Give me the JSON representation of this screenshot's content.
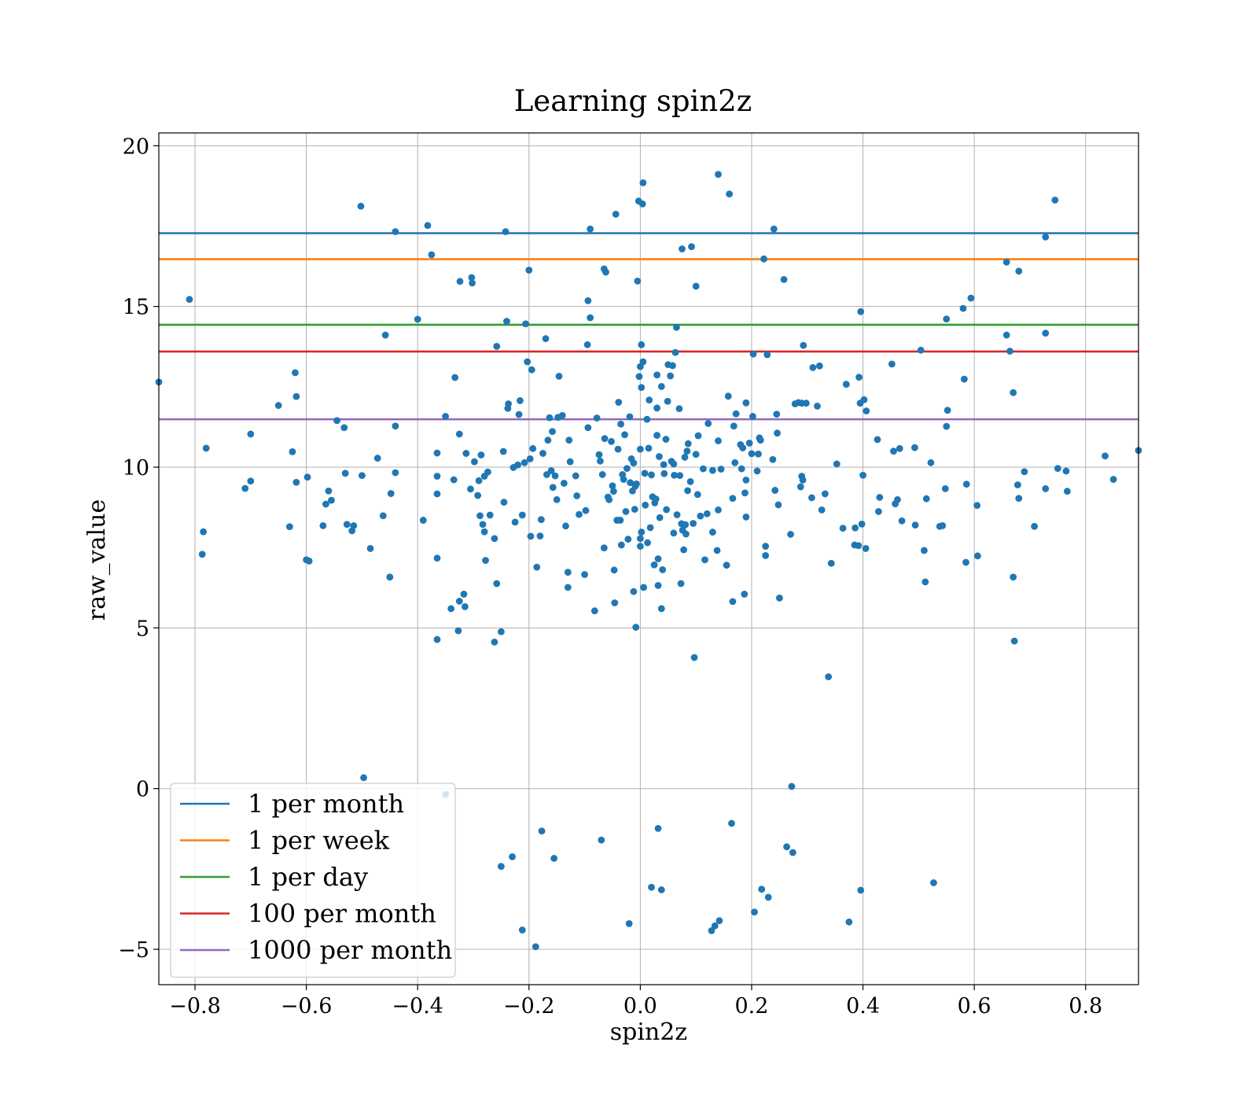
{
  "chart_data": {
    "type": "scatter",
    "title": "Learning spin2z",
    "xlabel": "spin2z",
    "ylabel": "raw_value",
    "xlim": [
      -0.865,
      0.895
    ],
    "ylim": [
      -6.1,
      20.4
    ],
    "xticks": [
      -0.8,
      -0.6,
      -0.4,
      -0.2,
      0.0,
      0.2,
      0.4,
      0.6,
      0.8
    ],
    "xtick_labels": [
      "−0.8",
      "−0.6",
      "−0.4",
      "−0.2",
      "0.0",
      "0.2",
      "0.4",
      "0.6",
      "0.8"
    ],
    "yticks": [
      -5,
      0,
      5,
      10,
      15,
      20
    ],
    "ytick_labels": [
      "−5",
      "0",
      "5",
      "10",
      "15",
      "20"
    ],
    "grid": true,
    "legend_position": "lower-left",
    "marker_color": "#1f77b4",
    "thresholds": [
      {
        "name": "1 per month",
        "y": 17.28,
        "color": "#1f77b4"
      },
      {
        "name": "1 per week",
        "y": 16.47,
        "color": "#ff7f0e"
      },
      {
        "name": "1 per day",
        "y": 14.43,
        "color": "#2ca02c"
      },
      {
        "name": "100 per month",
        "y": 13.6,
        "color": "#d62728"
      },
      {
        "name": "1000 per month",
        "y": 11.49,
        "color": "#9467bd"
      }
    ],
    "points": [
      [
        -0.865,
        12.65
      ],
      [
        -0.81,
        15.22
      ],
      [
        -0.78,
        10.59
      ],
      [
        -0.785,
        7.99
      ],
      [
        -0.787,
        7.29
      ],
      [
        -0.71,
        9.34
      ],
      [
        -0.7,
        11.03
      ],
      [
        -0.7,
        9.57
      ],
      [
        -0.65,
        11.92
      ],
      [
        -0.63,
        8.15
      ],
      [
        -0.625,
        10.48
      ],
      [
        -0.62,
        12.94
      ],
      [
        -0.618,
        12.2
      ],
      [
        -0.618,
        9.53
      ],
      [
        -0.6,
        7.12
      ],
      [
        -0.598,
        9.69
      ],
      [
        -0.595,
        7.08
      ],
      [
        -0.57,
        8.18
      ],
      [
        -0.565,
        8.85
      ],
      [
        -0.56,
        9.26
      ],
      [
        -0.555,
        8.97
      ],
      [
        -0.545,
        11.45
      ],
      [
        -0.532,
        11.23
      ],
      [
        -0.53,
        9.81
      ],
      [
        -0.527,
        8.22
      ],
      [
        -0.518,
        8.02
      ],
      [
        -0.515,
        8.18
      ],
      [
        -0.5,
        9.74
      ],
      [
        -0.502,
        18.12
      ],
      [
        -0.497,
        0.34
      ],
      [
        -0.485,
        7.47
      ],
      [
        -0.472,
        10.28
      ],
      [
        -0.462,
        8.49
      ],
      [
        -0.458,
        14.11
      ],
      [
        -0.448,
        9.18
      ],
      [
        -0.45,
        6.58
      ],
      [
        -0.44,
        9.83
      ],
      [
        -0.44,
        11.28
      ],
      [
        -0.44,
        17.33
      ],
      [
        -0.4,
        14.6
      ],
      [
        -0.39,
        8.35
      ],
      [
        -0.382,
        17.52
      ],
      [
        -0.375,
        16.61
      ],
      [
        -0.365,
        10.44
      ],
      [
        -0.365,
        9.72
      ],
      [
        -0.365,
        9.17
      ],
      [
        -0.365,
        7.17
      ],
      [
        -0.365,
        4.64
      ],
      [
        -0.35,
        -0.18
      ],
      [
        -0.35,
        11.58
      ],
      [
        -0.34,
        5.6
      ],
      [
        -0.335,
        9.61
      ],
      [
        -0.333,
        12.79
      ],
      [
        -0.327,
        4.91
      ],
      [
        -0.325,
        11.03
      ],
      [
        -0.324,
        15.78
      ],
      [
        -0.325,
        5.83
      ],
      [
        -0.317,
        6.05
      ],
      [
        -0.315,
        5.66
      ],
      [
        -0.313,
        10.43
      ],
      [
        -0.305,
        9.32
      ],
      [
        -0.303,
        15.9
      ],
      [
        -0.302,
        15.73
      ],
      [
        -0.298,
        10.17
      ],
      [
        -0.292,
        9.12
      ],
      [
        -0.29,
        9.58
      ],
      [
        -0.288,
        8.49
      ],
      [
        -0.286,
        10.38
      ],
      [
        -0.283,
        8.22
      ],
      [
        -0.28,
        9.72
      ],
      [
        -0.28,
        7.99
      ],
      [
        -0.278,
        7.1
      ],
      [
        -0.274,
        9.85
      ],
      [
        -0.27,
        8.51
      ],
      [
        -0.262,
        7.78
      ],
      [
        -0.262,
        4.56
      ],
      [
        -0.258,
        13.76
      ],
      [
        -0.258,
        6.38
      ],
      [
        -0.25,
        4.88
      ],
      [
        -0.25,
        -2.42
      ],
      [
        -0.246,
        10.49
      ],
      [
        -0.245,
        8.91
      ],
      [
        -0.242,
        17.33
      ],
      [
        -0.24,
        14.54
      ],
      [
        -0.238,
        11.83
      ],
      [
        -0.237,
        11.97
      ],
      [
        -0.23,
        -2.12
      ],
      [
        -0.228,
        9.99
      ],
      [
        -0.225,
        8.29
      ],
      [
        -0.22,
        10.07
      ],
      [
        -0.218,
        11.64
      ],
      [
        -0.216,
        12.07
      ],
      [
        -0.212,
        8.51
      ],
      [
        -0.212,
        -4.4
      ],
      [
        -0.208,
        10.14
      ],
      [
        -0.206,
        14.46
      ],
      [
        -0.203,
        13.28
      ],
      [
        -0.2,
        16.13
      ],
      [
        -0.198,
        10.26
      ],
      [
        -0.197,
        7.85
      ],
      [
        -0.195,
        13.03
      ],
      [
        -0.193,
        10.58
      ],
      [
        -0.188,
        -4.92
      ],
      [
        -0.186,
        6.89
      ],
      [
        -0.18,
        7.86
      ],
      [
        -0.177,
        -1.32
      ],
      [
        -0.178,
        8.37
      ],
      [
        -0.175,
        10.43
      ],
      [
        -0.17,
        14.0
      ],
      [
        -0.168,
        9.77
      ],
      [
        -0.166,
        10.84
      ],
      [
        -0.163,
        11.54
      ],
      [
        -0.16,
        9.89
      ],
      [
        -0.158,
        11.11
      ],
      [
        -0.157,
        9.37
      ],
      [
        -0.155,
        -2.17
      ],
      [
        -0.153,
        9.73
      ],
      [
        -0.15,
        8.99
      ],
      [
        -0.148,
        11.55
      ],
      [
        -0.146,
        12.83
      ],
      [
        -0.14,
        11.61
      ],
      [
        -0.137,
        9.5
      ],
      [
        -0.134,
        8.17
      ],
      [
        -0.13,
        6.26
      ],
      [
        -0.13,
        6.73
      ],
      [
        -0.128,
        10.84
      ],
      [
        -0.126,
        10.17
      ],
      [
        -0.116,
        9.73
      ],
      [
        -0.114,
        9.11
      ],
      [
        -0.11,
        8.53
      ],
      [
        -0.1,
        6.66
      ],
      [
        -0.098,
        8.65
      ],
      [
        -0.095,
        13.81
      ],
      [
        -0.094,
        11.23
      ],
      [
        -0.094,
        15.18
      ],
      [
        -0.09,
        14.65
      ],
      [
        -0.09,
        17.41
      ],
      [
        -0.082,
        5.53
      ],
      [
        -0.078,
        11.53
      ],
      [
        -0.074,
        10.39
      ],
      [
        -0.072,
        10.19
      ],
      [
        -0.07,
        -1.6
      ],
      [
        -0.068,
        9.77
      ],
      [
        -0.065,
        16.17
      ],
      [
        -0.062,
        16.07
      ],
      [
        -0.065,
        7.49
      ],
      [
        -0.064,
        10.89
      ],
      [
        -0.058,
        9.07
      ],
      [
        -0.056,
        8.99
      ],
      [
        -0.052,
        10.8
      ],
      [
        -0.05,
        9.42
      ],
      [
        -0.048,
        9.25
      ],
      [
        -0.047,
        6.8
      ],
      [
        -0.046,
        5.78
      ],
      [
        -0.044,
        17.87
      ],
      [
        -0.042,
        8.35
      ],
      [
        -0.04,
        10.56
      ],
      [
        -0.039,
        12.02
      ],
      [
        -0.036,
        8.35
      ],
      [
        -0.035,
        11.34
      ],
      [
        -0.034,
        7.58
      ],
      [
        -0.032,
        9.77
      ],
      [
        -0.03,
        9.62
      ],
      [
        -0.028,
        11.01
      ],
      [
        -0.026,
        8.62
      ],
      [
        -0.022,
        7.76
      ],
      [
        -0.024,
        9.96
      ],
      [
        -0.02,
        -4.2
      ],
      [
        -0.019,
        11.57
      ],
      [
        -0.018,
        9.52
      ],
      [
        -0.016,
        10.26
      ],
      [
        -0.014,
        9.26
      ],
      [
        -0.012,
        10.13
      ],
      [
        -0.012,
        6.13
      ],
      [
        -0.01,
        8.69
      ],
      [
        -0.008,
        5.02
      ],
      [
        -0.009,
        9.41
      ],
      [
        -0.007,
        9.48
      ],
      [
        -0.005,
        15.79
      ],
      [
        -0.003,
        18.28
      ],
      [
        -0.002,
        12.82
      ],
      [
        0.0,
        10.56
      ],
      [
        0.0,
        13.13
      ],
      [
        0.0,
        7.54
      ],
      [
        0.0,
        7.78
      ],
      [
        0.002,
        7.98
      ],
      [
        0.002,
        12.48
      ],
      [
        0.002,
        13.81
      ],
      [
        0.004,
        18.19
      ],
      [
        0.005,
        18.85
      ],
      [
        0.005,
        13.28
      ],
      [
        0.006,
        6.26
      ],
      [
        0.008,
        9.81
      ],
      [
        0.009,
        8.82
      ],
      [
        0.012,
        11.49
      ],
      [
        0.013,
        7.65
      ],
      [
        0.015,
        10.59
      ],
      [
        0.016,
        12.09
      ],
      [
        0.018,
        8.12
      ],
      [
        0.02,
        9.76
      ],
      [
        0.022,
        9.08
      ],
      [
        0.02,
        -3.07
      ],
      [
        0.025,
        6.96
      ],
      [
        0.026,
        8.89
      ],
      [
        0.028,
        9.01
      ],
      [
        0.03,
        10.99
      ],
      [
        0.03,
        12.87
      ],
      [
        0.03,
        11.84
      ],
      [
        0.032,
        7.15
      ],
      [
        0.032,
        6.32
      ],
      [
        0.032,
        -1.24
      ],
      [
        0.034,
        10.33
      ],
      [
        0.035,
        8.43
      ],
      [
        0.038,
        12.51
      ],
      [
        0.038,
        5.6
      ],
      [
        0.038,
        -3.15
      ],
      [
        0.04,
        6.81
      ],
      [
        0.042,
        10.08
      ],
      [
        0.043,
        9.8
      ],
      [
        0.046,
        10.87
      ],
      [
        0.047,
        8.68
      ],
      [
        0.049,
        12.05
      ],
      [
        0.05,
        13.19
      ],
      [
        0.054,
        12.84
      ],
      [
        0.056,
        10.18
      ],
      [
        0.058,
        13.16
      ],
      [
        0.06,
        7.95
      ],
      [
        0.06,
        10.1
      ],
      [
        0.061,
        9.75
      ],
      [
        0.063,
        13.57
      ],
      [
        0.065,
        14.35
      ],
      [
        0.066,
        8.52
      ],
      [
        0.07,
        11.82
      ],
      [
        0.071,
        9.74
      ],
      [
        0.073,
        6.38
      ],
      [
        0.074,
        8.24
      ],
      [
        0.075,
        16.79
      ],
      [
        0.076,
        8.04
      ],
      [
        0.078,
        7.43
      ],
      [
        0.08,
        10.31
      ],
      [
        0.081,
        8.21
      ],
      [
        0.082,
        7.92
      ],
      [
        0.084,
        10.5
      ],
      [
        0.085,
        9.27
      ],
      [
        0.086,
        10.73
      ],
      [
        0.09,
        9.55
      ],
      [
        0.092,
        16.86
      ],
      [
        0.095,
        8.25
      ],
      [
        0.097,
        4.08
      ],
      [
        0.1,
        10.4
      ],
      [
        0.1,
        15.63
      ],
      [
        0.103,
        9.15
      ],
      [
        0.104,
        10.98
      ],
      [
        0.108,
        8.48
      ],
      [
        0.113,
        9.95
      ],
      [
        0.116,
        7.12
      ],
      [
        0.12,
        8.55
      ],
      [
        0.122,
        11.36
      ],
      [
        0.128,
        -4.42
      ],
      [
        0.13,
        7.98
      ],
      [
        0.13,
        9.9
      ],
      [
        0.134,
        -4.27
      ],
      [
        0.138,
        7.41
      ],
      [
        0.14,
        10.82
      ],
      [
        0.14,
        8.67
      ],
      [
        0.14,
        19.11
      ],
      [
        0.142,
        -4.11
      ],
      [
        0.145,
        9.94
      ],
      [
        0.155,
        6.95
      ],
      [
        0.158,
        12.21
      ],
      [
        0.16,
        18.5
      ],
      [
        0.164,
        -1.08
      ],
      [
        0.166,
        5.82
      ],
      [
        0.166,
        9.03
      ],
      [
        0.168,
        11.28
      ],
      [
        0.17,
        10.14
      ],
      [
        0.172,
        11.66
      ],
      [
        0.18,
        10.7
      ],
      [
        0.182,
        9.95
      ],
      [
        0.184,
        10.6
      ],
      [
        0.187,
        6.05
      ],
      [
        0.188,
        9.2
      ],
      [
        0.19,
        8.45
      ],
      [
        0.19,
        12.0
      ],
      [
        0.19,
        9.6
      ],
      [
        0.196,
        10.75
      ],
      [
        0.2,
        10.42
      ],
      [
        0.202,
        11.58
      ],
      [
        0.203,
        13.52
      ],
      [
        0.205,
        -3.84
      ],
      [
        0.21,
        9.88
      ],
      [
        0.212,
        10.41
      ],
      [
        0.214,
        10.91
      ],
      [
        0.216,
        10.84
      ],
      [
        0.218,
        -3.13
      ],
      [
        0.222,
        16.48
      ],
      [
        0.225,
        7.54
      ],
      [
        0.225,
        7.25
      ],
      [
        0.228,
        13.5
      ],
      [
        0.23,
        -3.38
      ],
      [
        0.238,
        10.24
      ],
      [
        0.24,
        17.41
      ],
      [
        0.242,
        9.28
      ],
      [
        0.245,
        11.65
      ],
      [
        0.246,
        11.06
      ],
      [
        0.248,
        8.83
      ],
      [
        0.25,
        5.93
      ],
      [
        0.258,
        15.84
      ],
      [
        0.263,
        -1.81
      ],
      [
        0.27,
        7.91
      ],
      [
        0.272,
        0.07
      ],
      [
        0.274,
        -1.99
      ],
      [
        0.278,
        11.97
      ],
      [
        0.284,
        12.01
      ],
      [
        0.288,
        9.39
      ],
      [
        0.29,
        9.72
      ],
      [
        0.29,
        11.99
      ],
      [
        0.292,
        9.6
      ],
      [
        0.293,
        13.79
      ],
      [
        0.298,
        11.99
      ],
      [
        0.308,
        9.05
      ],
      [
        0.31,
        13.1
      ],
      [
        0.318,
        11.9
      ],
      [
        0.322,
        13.15
      ],
      [
        0.326,
        8.67
      ],
      [
        0.332,
        9.17
      ],
      [
        0.338,
        3.48
      ],
      [
        0.343,
        7.01
      ],
      [
        0.353,
        10.1
      ],
      [
        0.364,
        8.1
      ],
      [
        0.37,
        12.58
      ],
      [
        0.375,
        -4.15
      ],
      [
        0.385,
        7.58
      ],
      [
        0.386,
        8.11
      ],
      [
        0.392,
        7.56
      ],
      [
        0.393,
        12.8
      ],
      [
        0.396,
        -3.16
      ],
      [
        0.395,
        11.99
      ],
      [
        0.396,
        14.84
      ],
      [
        0.398,
        8.23
      ],
      [
        0.4,
        9.75
      ],
      [
        0.402,
        12.1
      ],
      [
        0.405,
        7.47
      ],
      [
        0.406,
        11.75
      ],
      [
        0.426,
        10.86
      ],
      [
        0.428,
        8.62
      ],
      [
        0.43,
        9.06
      ],
      [
        0.452,
        13.21
      ],
      [
        0.455,
        10.5
      ],
      [
        0.458,
        8.86
      ],
      [
        0.462,
        8.99
      ],
      [
        0.466,
        10.58
      ],
      [
        0.47,
        8.33
      ],
      [
        0.493,
        10.61
      ],
      [
        0.494,
        8.2
      ],
      [
        0.504,
        13.64
      ],
      [
        0.51,
        7.41
      ],
      [
        0.512,
        6.43
      ],
      [
        0.514,
        9.02
      ],
      [
        0.522,
        10.14
      ],
      [
        0.527,
        -2.93
      ],
      [
        0.538,
        8.16
      ],
      [
        0.543,
        8.18
      ],
      [
        0.548,
        9.33
      ],
      [
        0.55,
        14.61
      ],
      [
        0.55,
        11.27
      ],
      [
        0.552,
        11.77
      ],
      [
        0.58,
        14.94
      ],
      [
        0.582,
        12.74
      ],
      [
        0.585,
        7.04
      ],
      [
        0.586,
        9.47
      ],
      [
        0.594,
        15.26
      ],
      [
        0.605,
        8.81
      ],
      [
        0.606,
        7.24
      ],
      [
        0.658,
        16.38
      ],
      [
        0.658,
        14.11
      ],
      [
        0.664,
        13.61
      ],
      [
        0.67,
        12.32
      ],
      [
        0.67,
        6.58
      ],
      [
        0.672,
        4.59
      ],
      [
        0.678,
        9.45
      ],
      [
        0.68,
        9.03
      ],
      [
        0.68,
        16.1
      ],
      [
        0.69,
        9.86
      ],
      [
        0.708,
        8.16
      ],
      [
        0.728,
        17.16
      ],
      [
        0.728,
        14.17
      ],
      [
        0.728,
        9.33
      ],
      [
        0.745,
        18.31
      ],
      [
        0.75,
        9.96
      ],
      [
        0.765,
        9.88
      ],
      [
        0.767,
        9.25
      ],
      [
        0.835,
        10.35
      ],
      [
        0.85,
        9.62
      ],
      [
        0.895,
        10.52
      ]
    ]
  }
}
